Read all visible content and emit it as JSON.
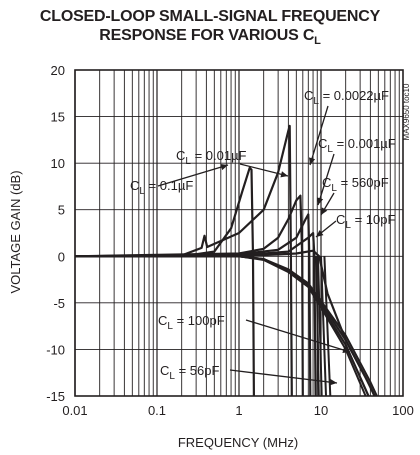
{
  "chart_data": {
    "type": "line",
    "title_line1": "CLOSED-LOOP SMALL-SIGNAL FREQUENCY",
    "title_line2_text": "RESPONSE FOR VARIOUS C",
    "title_line2_sub": "L",
    "xlabel": "FREQUENCY (MHz)",
    "ylabel": "VOLTAGE GAIN (dB)",
    "x_scale": "log",
    "xlim": [
      0.01,
      100
    ],
    "ylim": [
      -15,
      20
    ],
    "x_ticks": [
      "0.01",
      "0.1",
      "1",
      "10",
      "100"
    ],
    "y_ticks": [
      "20",
      "15",
      "10",
      "5",
      "0",
      "-5",
      "-10",
      "-15"
    ],
    "grid": true,
    "chart_code": "MAX9650 toc10",
    "series": [
      {
        "label_prefix": "C",
        "label_sub": "L",
        "label_value": " = 0.1µF",
        "points": [
          [
            0.01,
            0
          ],
          [
            0.2,
            0
          ],
          [
            0.5,
            0.5
          ],
          [
            0.8,
            3
          ],
          [
            1.1,
            7
          ],
          [
            1.35,
            9.5
          ],
          [
            1.42,
            9.3
          ],
          [
            1.48,
            0
          ],
          [
            1.52,
            -15
          ]
        ]
      },
      {
        "label_prefix": "C",
        "label_sub": "L",
        "label_value": " = 0.01µF",
        "points": [
          [
            0.01,
            0
          ],
          [
            0.2,
            0.1
          ],
          [
            0.35,
            0.9
          ],
          [
            0.38,
            2.2
          ],
          [
            0.41,
            1.0
          ],
          [
            1,
            2.5
          ],
          [
            2,
            5
          ],
          [
            3,
            9
          ],
          [
            4,
            13.5
          ],
          [
            4.15,
            14
          ],
          [
            4.3,
            0
          ],
          [
            4.4,
            -15
          ]
        ]
      },
      {
        "label_prefix": "C",
        "label_sub": "L",
        "label_value": " = 0.0022µF",
        "points": [
          [
            0.01,
            0
          ],
          [
            1,
            0.3
          ],
          [
            2,
            0.8
          ],
          [
            3,
            2
          ],
          [
            4,
            4
          ],
          [
            5,
            6
          ],
          [
            5.6,
            6.5
          ],
          [
            5.9,
            0
          ],
          [
            6,
            -15
          ]
        ]
      },
      {
        "label_prefix": "C",
        "label_sub": "L",
        "label_value": " = 0.001µF",
        "points": [
          [
            0.01,
            0
          ],
          [
            1,
            0.2
          ],
          [
            3,
            0.7
          ],
          [
            5,
            2
          ],
          [
            6.5,
            4
          ],
          [
            7,
            4.5
          ],
          [
            7.2,
            0
          ],
          [
            7.4,
            -15
          ]
        ]
      },
      {
        "label_prefix": "C",
        "label_sub": "L",
        "label_value": " = 560pF",
        "points": [
          [
            0.01,
            0
          ],
          [
            1,
            0.1
          ],
          [
            4,
            0.5
          ],
          [
            7,
            2
          ],
          [
            8,
            2.5
          ],
          [
            8.3,
            0
          ],
          [
            8.6,
            -15
          ]
        ]
      },
      {
        "label_prefix": "C",
        "label_sub": "L",
        "label_value": " = 10pF",
        "points": [
          [
            0.01,
            0
          ],
          [
            1,
            0
          ],
          [
            5,
            0.3
          ],
          [
            8,
            0.6
          ],
          [
            9.5,
            0
          ],
          [
            12,
            -4
          ],
          [
            20,
            -9
          ],
          [
            35,
            -13
          ],
          [
            45,
            -15
          ]
        ]
      },
      {
        "label_prefix": "C",
        "label_sub": "L",
        "label_value": " = 100pF",
        "points": [
          [
            0.01,
            0
          ],
          [
            1,
            0
          ],
          [
            2,
            -0.3
          ],
          [
            4,
            -1.5
          ],
          [
            7,
            -3
          ],
          [
            10,
            -5
          ],
          [
            20,
            -9
          ],
          [
            40,
            -14
          ],
          [
            45,
            -15
          ]
        ]
      },
      {
        "label_prefix": "C",
        "label_sub": "L",
        "label_value": " = 56pF",
        "points": [
          [
            0.01,
            0
          ],
          [
            1,
            0
          ],
          [
            2,
            -0.3
          ],
          [
            4,
            -1.6
          ],
          [
            7,
            -3.2
          ],
          [
            10,
            -5.3
          ],
          [
            20,
            -9.5
          ],
          [
            38,
            -15
          ]
        ]
      }
    ],
    "extra_curves": [
      [
        [
          0.01,
          0
        ],
        [
          1,
          0
        ],
        [
          2,
          -0.3
        ],
        [
          4,
          -1.4
        ],
        [
          7,
          -2.9
        ],
        [
          10,
          -4.8
        ],
        [
          20,
          -8.5
        ],
        [
          40,
          -13.5
        ],
        [
          48,
          -15
        ]
      ],
      [
        [
          0.01,
          0
        ],
        [
          1,
          0
        ],
        [
          2,
          -0.4
        ],
        [
          4,
          -1.7
        ],
        [
          7,
          -3.3
        ],
        [
          10,
          -5.5
        ],
        [
          20,
          -10
        ],
        [
          35,
          -15
        ]
      ],
      [
        [
          8.8,
          0
        ],
        [
          9.4,
          -15
        ]
      ],
      [
        [
          9.2,
          0
        ],
        [
          10.2,
          -15
        ]
      ],
      [
        [
          10,
          0
        ],
        [
          11.5,
          -15
        ]
      ],
      [
        [
          11,
          0
        ],
        [
          13,
          -15
        ]
      ]
    ]
  }
}
